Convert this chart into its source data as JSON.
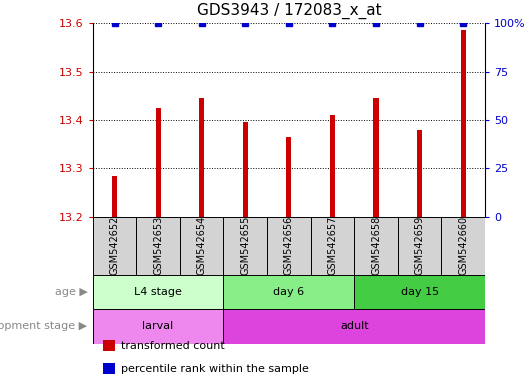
{
  "title": "GDS3943 / 172083_x_at",
  "samples": [
    "GSM542652",
    "GSM542653",
    "GSM542654",
    "GSM542655",
    "GSM542656",
    "GSM542657",
    "GSM542658",
    "GSM542659",
    "GSM542660"
  ],
  "transformed_counts": [
    13.285,
    13.425,
    13.445,
    13.395,
    13.365,
    13.41,
    13.445,
    13.38,
    13.585
  ],
  "percentile_ranks": [
    100,
    100,
    100,
    100,
    100,
    100,
    100,
    100,
    100
  ],
  "ylim_left": [
    13.2,
    13.6
  ],
  "ylim_right": [
    0,
    100
  ],
  "yticks_left": [
    13.2,
    13.3,
    13.4,
    13.5,
    13.6
  ],
  "yticks_right": [
    0,
    25,
    50,
    75,
    100
  ],
  "bar_color": "#cc0000",
  "percentile_color": "#0000cc",
  "age_groups": [
    {
      "label": "L4 stage",
      "start": 0,
      "end": 3,
      "color": "#ccffcc"
    },
    {
      "label": "day 6",
      "start": 3,
      "end": 6,
      "color": "#88ee88"
    },
    {
      "label": "day 15",
      "start": 6,
      "end": 9,
      "color": "#44cc44"
    }
  ],
  "dev_groups": [
    {
      "label": "larval",
      "start": 0,
      "end": 3,
      "color": "#ee88ee"
    },
    {
      "label": "adult",
      "start": 3,
      "end": 9,
      "color": "#dd44dd"
    }
  ],
  "legend_bar_label": "transformed count",
  "legend_pct_label": "percentile rank within the sample",
  "age_label": "age",
  "dev_label": "development stage",
  "bar_width": 0.12
}
